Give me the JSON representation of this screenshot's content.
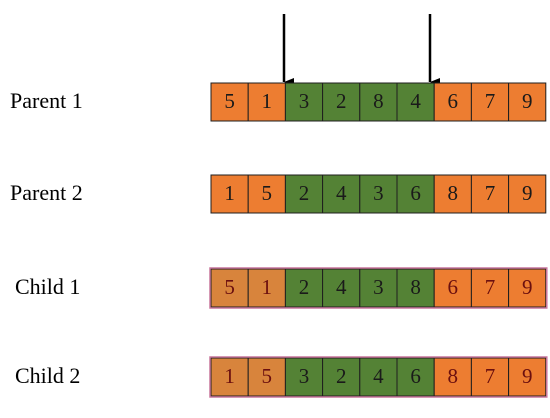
{
  "rows": [
    {
      "label": "Parent 1",
      "cells": [
        5,
        1,
        3,
        2,
        8,
        4,
        6,
        7,
        9
      ]
    },
    {
      "label": "Parent 2",
      "cells": [
        1,
        5,
        2,
        4,
        3,
        6,
        8,
        7,
        9
      ]
    },
    {
      "label": "Child 1",
      "cells": [
        5,
        1,
        2,
        4,
        3,
        8,
        6,
        7,
        9
      ]
    },
    {
      "label": "Child 2",
      "cells": [
        1,
        5,
        3,
        2,
        4,
        6,
        8,
        7,
        9
      ]
    }
  ]
}
